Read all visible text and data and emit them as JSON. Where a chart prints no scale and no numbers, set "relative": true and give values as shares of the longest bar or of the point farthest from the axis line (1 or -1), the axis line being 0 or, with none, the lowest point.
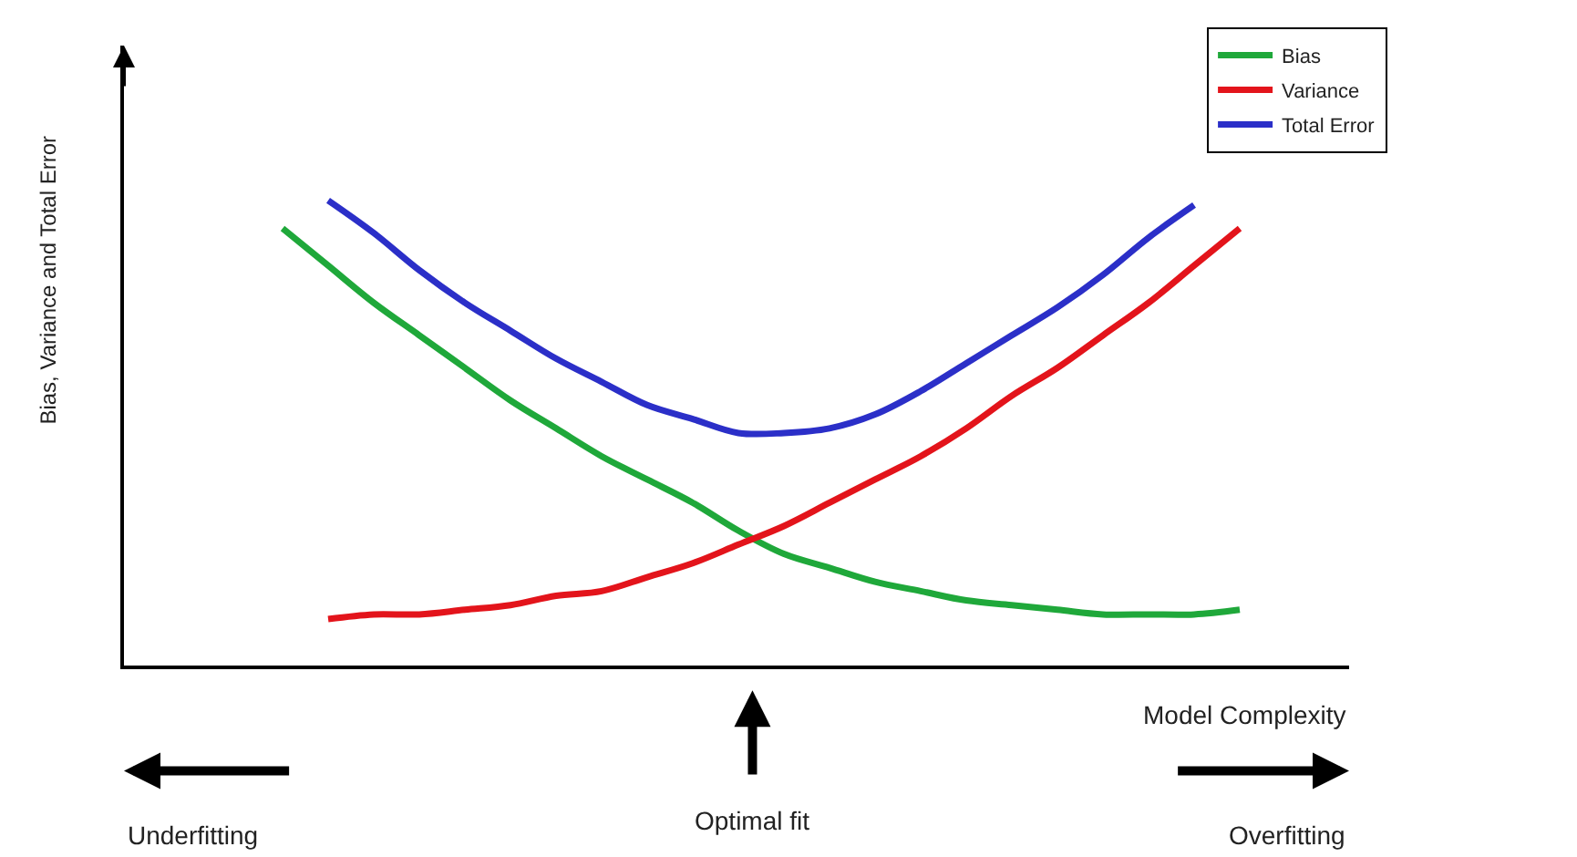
{
  "chart_data": {
    "type": "line",
    "relative": true,
    "xlabel": "Model Complexity",
    "ylabel": "Bias, Variance and Total Error",
    "categories": [
      null,
      null,
      null,
      null,
      null,
      null,
      null,
      null,
      null,
      null,
      null,
      null,
      null,
      null,
      null,
      null,
      null,
      null,
      null,
      null,
      null,
      null,
      null,
      null,
      null,
      null,
      null
    ],
    "series": [
      {
        "name": "Bias",
        "color": "#1fa83a",
        "values": [
          null,
          null,
          null,
          0.94,
          0.86,
          0.78,
          0.71,
          0.64,
          0.57,
          0.51,
          0.45,
          0.4,
          0.35,
          0.29,
          0.24,
          0.21,
          0.18,
          0.16,
          0.14,
          0.13,
          0.12,
          0.11,
          0.11,
          0.11,
          0.12,
          null,
          null
        ]
      },
      {
        "name": "Variance",
        "color": "#e3141b",
        "values": [
          null,
          null,
          null,
          null,
          0.1,
          0.11,
          0.11,
          0.12,
          0.13,
          0.15,
          0.16,
          0.19,
          0.22,
          0.26,
          0.3,
          0.35,
          0.4,
          0.45,
          0.51,
          0.58,
          0.64,
          0.71,
          0.78,
          0.86,
          0.94,
          null,
          null
        ]
      },
      {
        "name": "Total Error",
        "color": "#2b2fc8",
        "values": [
          null,
          null,
          null,
          null,
          1.0,
          0.93,
          0.85,
          0.78,
          0.72,
          0.66,
          0.61,
          0.56,
          0.53,
          0.5,
          0.5,
          0.51,
          0.54,
          0.59,
          0.65,
          0.71,
          0.77,
          0.84,
          0.92,
          0.99,
          null,
          null,
          null
        ]
      }
    ],
    "legend": "top right",
    "marker": "none",
    "line_style": "solid",
    "annotations": [
      "Optimal fit",
      "Underfitting",
      "Overfitting"
    ]
  }
}
